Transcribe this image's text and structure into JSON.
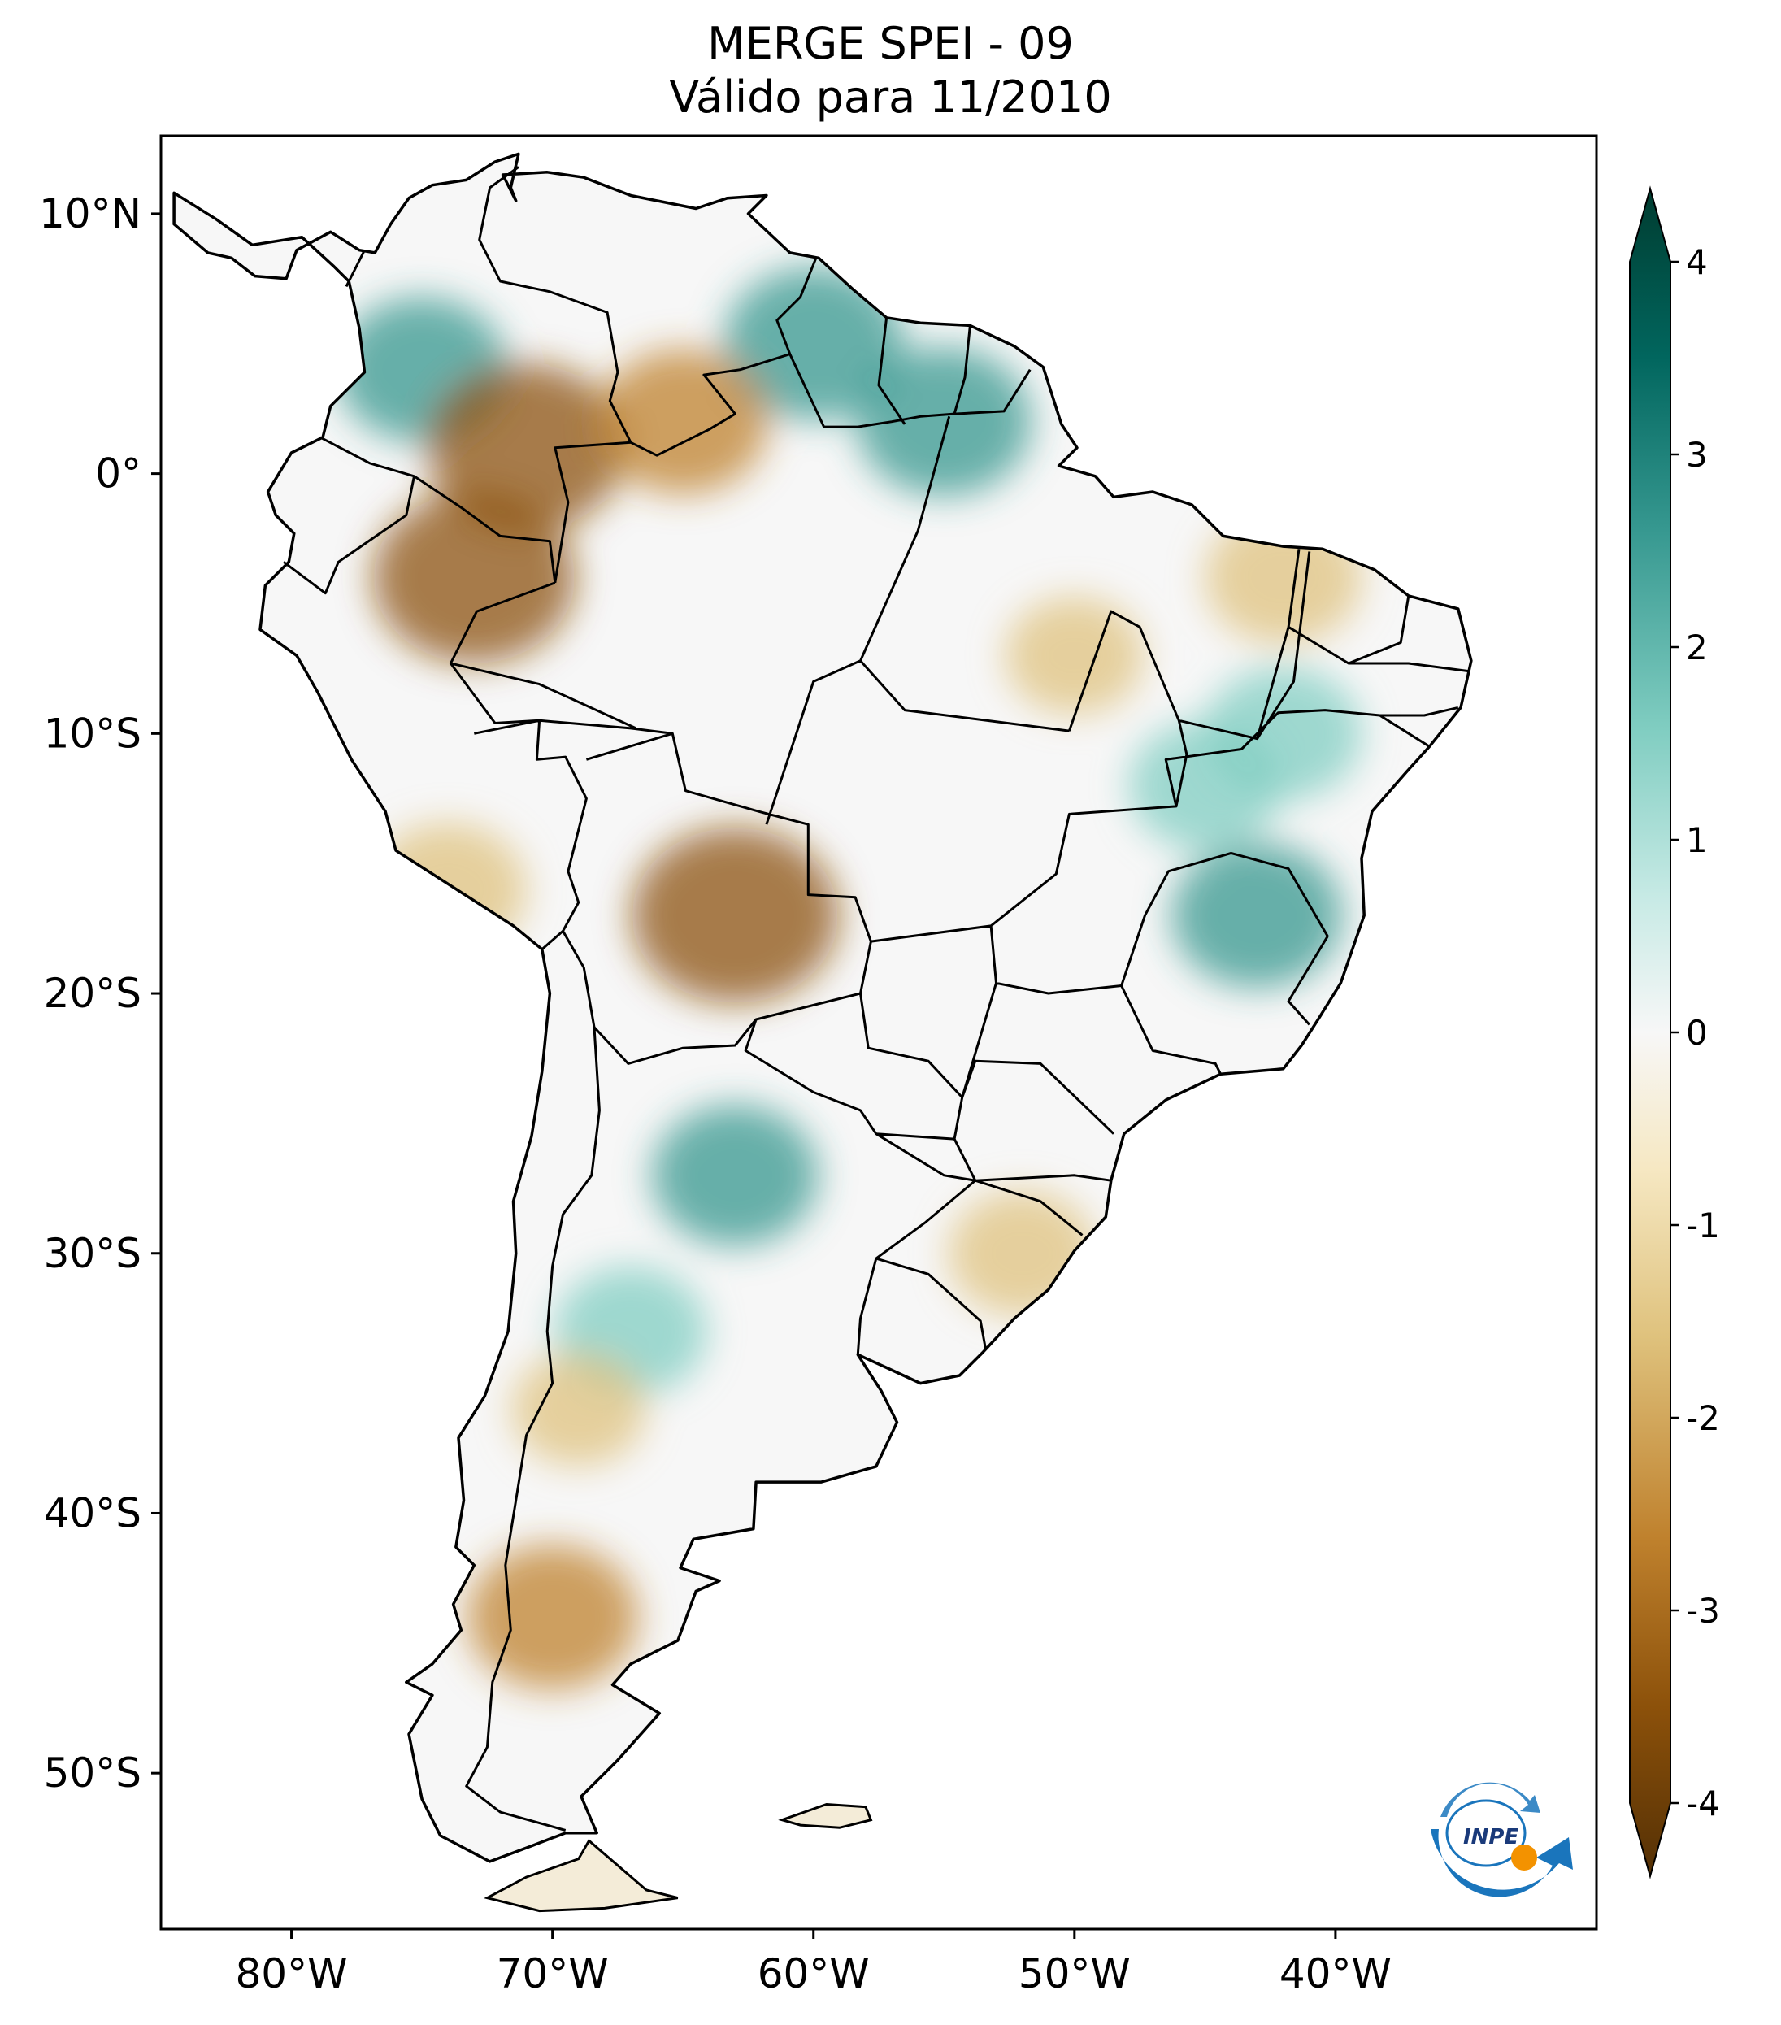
{
  "title": {
    "line1": "MERGE   SPEI - 09",
    "line2": "Válido para 11/2010"
  },
  "map": {
    "lon_range": [
      -85,
      -30
    ],
    "lat_range": [
      -56,
      13
    ],
    "lat_ticks": [
      {
        "value": 10,
        "label": "10°N"
      },
      {
        "value": 0,
        "label": "0°"
      },
      {
        "value": -10,
        "label": "10°S"
      },
      {
        "value": -20,
        "label": "20°S"
      },
      {
        "value": -30,
        "label": "30°S"
      },
      {
        "value": -40,
        "label": "40°S"
      },
      {
        "value": -50,
        "label": "50°S"
      }
    ],
    "lon_ticks": [
      {
        "value": -80,
        "label": "80°W"
      },
      {
        "value": -70,
        "label": "70°W"
      },
      {
        "value": -60,
        "label": "60°W"
      },
      {
        "value": -50,
        "label": "50°W"
      },
      {
        "value": -40,
        "label": "40°W"
      }
    ],
    "anomalies": [
      {
        "lon": -75,
        "lat": 4,
        "value": 1.6
      },
      {
        "lon": -60,
        "lat": 5,
        "value": 1.8
      },
      {
        "lon": -55,
        "lat": 2,
        "value": 1.7
      },
      {
        "lon": -71,
        "lat": 1,
        "value": -2.2
      },
      {
        "lon": -73,
        "lat": -4,
        "value": -2.3
      },
      {
        "lon": -65,
        "lat": 2,
        "value": -1.6
      },
      {
        "lon": -63,
        "lat": -17,
        "value": -2.4
      },
      {
        "lon": -43,
        "lat": -17,
        "value": 1.6
      },
      {
        "lon": -45,
        "lat": -12,
        "value": 1.2
      },
      {
        "lon": -42,
        "lat": -10,
        "value": 1.3
      },
      {
        "lon": -42,
        "lat": -4,
        "value": -1.3
      },
      {
        "lon": -50,
        "lat": -7,
        "value": -0.9
      },
      {
        "lon": -63,
        "lat": -27,
        "value": 1.5
      },
      {
        "lon": -67,
        "lat": -33,
        "value": 1.2
      },
      {
        "lon": -70,
        "lat": -44,
        "value": -1.6
      },
      {
        "lon": -52,
        "lat": -30,
        "value": -1.1
      },
      {
        "lon": -74,
        "lat": -16,
        "value": -1.3
      },
      {
        "lon": -69,
        "lat": -36,
        "value": -0.8
      }
    ]
  },
  "colorbar": {
    "min": -4,
    "max": 4,
    "ticks": [
      "4",
      "3",
      "2",
      "1",
      "0",
      "-1",
      "-2",
      "-3",
      "-4"
    ],
    "colors": {
      "dry_extreme": "#543005",
      "dry_strong": "#8c510a",
      "dry_moderate": "#bf812d",
      "dry_mild": "#dfc27d",
      "dry_slight": "#f6e8c3",
      "neutral": "#f5f5f5",
      "wet_slight": "#c7eae5",
      "wet_mild": "#80cdc1",
      "wet_moderate": "#35978f",
      "wet_strong": "#01665e",
      "wet_extreme": "#003c30"
    }
  },
  "logo": {
    "text": "INPE"
  }
}
